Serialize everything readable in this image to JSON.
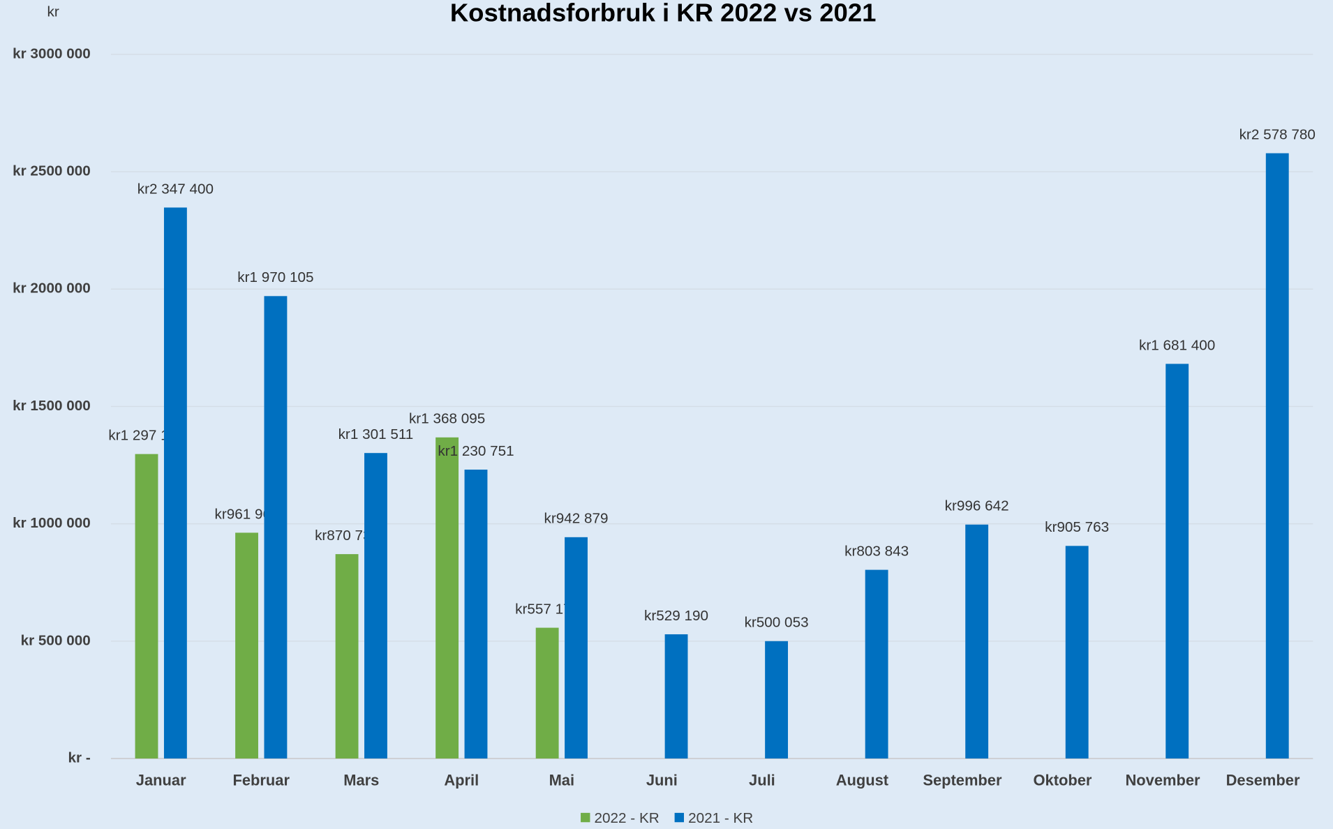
{
  "chart_data": {
    "type": "bar",
    "title": "Kostnadsforbruk i KR 2022 vs 2021",
    "y_label": "kr",
    "categories": [
      "Januar",
      "Februar",
      "Mars",
      "April",
      "Mai",
      "Juni",
      "Juli",
      "August",
      "September",
      "Oktober",
      "November",
      "Desember"
    ],
    "series": [
      {
        "name": "2022 - KR",
        "color": "#70ad47",
        "values": [
          1297160,
          961962,
          870731,
          1368095,
          557170,
          null,
          null,
          null,
          null,
          null,
          null,
          null
        ],
        "value_labels": [
          "kr1 297 160",
          "kr961 962",
          "kr870 731",
          "kr1 368 095",
          "kr557 170",
          null,
          null,
          null,
          null,
          null,
          null,
          null
        ]
      },
      {
        "name": "2021 - KR",
        "color": "#0070c0",
        "values": [
          2347400,
          1970105,
          1301511,
          1230751,
          942879,
          529190,
          500053,
          803843,
          996642,
          905763,
          1681400,
          2578780
        ],
        "value_labels": [
          "kr2 347 400",
          "kr1 970 105",
          "kr1 301 511",
          "kr1 230 751",
          "kr942 879",
          "kr529 190",
          "kr500 053",
          "kr803 843",
          "kr996 642",
          "kr905 763",
          "kr1 681 400",
          "kr2 578 780"
        ]
      }
    ],
    "ylim": [
      0,
      3000000
    ],
    "yticks": [
      {
        "value": 0,
        "label": "kr -"
      },
      {
        "value": 500000,
        "label": "kr 500 000"
      },
      {
        "value": 1000000,
        "label": "kr 1000 000"
      },
      {
        "value": 1500000,
        "label": "kr 1500 000"
      },
      {
        "value": 2000000,
        "label": "kr 2000 000"
      },
      {
        "value": 2500000,
        "label": "kr 2500 000"
      },
      {
        "value": 3000000,
        "label": "kr 3000 000"
      }
    ],
    "grid": true,
    "legend": "bottom"
  }
}
